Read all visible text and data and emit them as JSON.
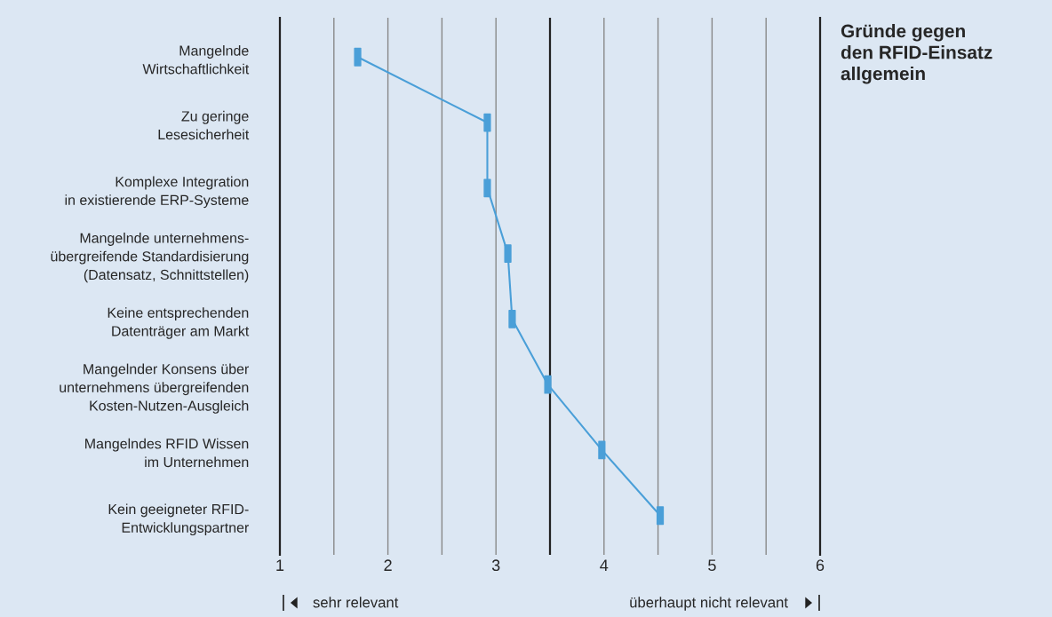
{
  "chart_data": {
    "type": "line",
    "orientation": "horizontal",
    "title": "Gründe gegen den RFID-Einsatz allgemein",
    "categories": [
      "Mangelnde\nWirtschaftlichkeit",
      "Zu geringe\nLesesicherheit",
      "Komplexe Integration\nin existierende ERP-Systeme",
      "Mangelnde unternehmens-\nübergreifende Standardisierung\n(Datensatz, Schnittstellen)",
      "Keine entsprechenden\nDatenträger am Markt",
      "Mangelnder Konsens über\nunternehmens übergreifenden\nKosten-Nutzen-Ausgleich",
      "Mangelndes RFID Wissen\nim Unternehmen",
      "Kein geeigneter RFID-\nEntwicklungspartner"
    ],
    "values": [
      1.72,
      2.92,
      2.92,
      3.11,
      3.15,
      3.48,
      3.98,
      4.52
    ],
    "color": "#4a9fd8",
    "marker": "square",
    "line_style": "solid",
    "xlim": [
      1,
      6
    ],
    "xticks": [
      1,
      {
        "value": 1.5,
        "label": null
      },
      2,
      {
        "value": 2.5,
        "label": null
      },
      3,
      {
        "value": 3.5,
        "label": null
      },
      4,
      {
        "value": 4.5,
        "label": null
      },
      5,
      {
        "value": 5.5,
        "label": null
      },
      6
    ],
    "grid": "x",
    "ref_lines": [
      {
        "axis": "x",
        "value": 3.5,
        "color": "#222222"
      }
    ],
    "annotations": [
      "sehr relevant",
      "überhaupt nicht relevant"
    ]
  }
}
